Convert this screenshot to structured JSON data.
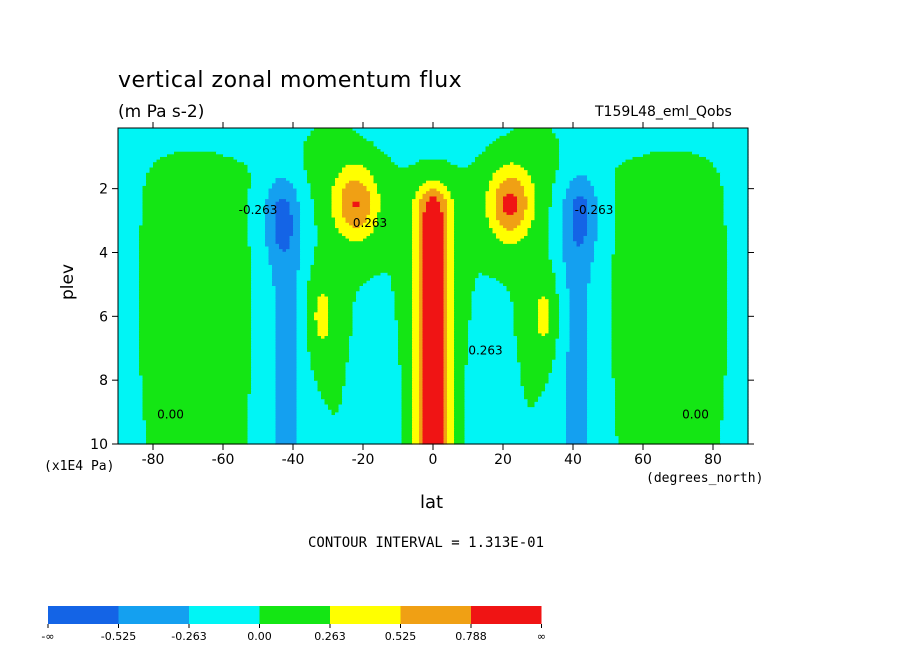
{
  "chart_data": {
    "type": "heatmap",
    "title": "vertical zonal momentum flux",
    "units_label": "(m Pa s-2)",
    "dataset_label": "T159L48_eml_Qobs",
    "xlabel": "lat",
    "ylabel": "plev",
    "x_units": "(degrees_north)",
    "y_units": "(x1E4 Pa)",
    "xlim": [
      -90,
      90
    ],
    "ylim": [
      0.1,
      10
    ],
    "y_inverted": true,
    "x_ticks": [
      -80,
      -60,
      -40,
      -20,
      0,
      20,
      40,
      60,
      80
    ],
    "y_ticks": [
      2,
      4,
      6,
      8,
      10
    ],
    "contour_interval_text": "CONTOUR INTERVAL = 1.313E-01",
    "contour_labels": [
      "0.00",
      "0.263",
      "-0.263"
    ],
    "levels": [
      "-∞",
      "-0.525",
      "-0.263",
      "0.00",
      "0.263",
      "0.525",
      "0.788",
      "∞"
    ],
    "level_colors": [
      "#1464e6",
      "#14a0f0",
      "#00f5f5",
      "#14e614",
      "#ffff00",
      "#f0a014",
      "#f01414"
    ],
    "features": [
      {
        "name": "equatorial maximum",
        "lat": [
          -6,
          6
        ],
        "plev": [
          2.0,
          10.0
        ],
        "value": 1.0
      },
      {
        "name": "subtropical maximum south",
        "lat": -22,
        "plev": 2.5,
        "value": 0.8
      },
      {
        "name": "subtropical maximum north",
        "lat": 22,
        "plev": 2.5,
        "value": 0.85
      },
      {
        "name": "midlatitude minimum south",
        "lat": -43,
        "plev": 2.7,
        "value": -0.6
      },
      {
        "name": "midlatitude minimum north",
        "lat": 42,
        "plev": 2.6,
        "value": -0.6
      },
      {
        "name": "secondary maximum south",
        "lat": -32,
        "plev": 6.0,
        "value": 0.35
      },
      {
        "name": "secondary maximum north",
        "lat": 32,
        "plev": 6.0,
        "value": 0.35
      }
    ]
  }
}
